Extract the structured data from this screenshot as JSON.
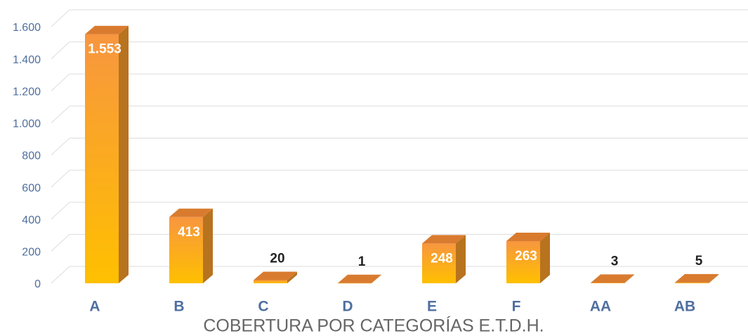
{
  "chart_data": {
    "type": "bar3d",
    "title": "COBERTURA POR CATEGORÍAS E.T.D.H.",
    "categories": [
      "A",
      "B",
      "C",
      "D",
      "E",
      "F",
      "AA",
      "AB"
    ],
    "values": [
      1553,
      413,
      20,
      1,
      248,
      263,
      3,
      5
    ],
    "value_labels": [
      "1.553",
      "413",
      "20",
      "1",
      "248",
      "263",
      "3",
      "5"
    ],
    "color": "#f7963f",
    "ylim": [
      0,
      1600
    ],
    "yticks": [
      0,
      200,
      400,
      600,
      800,
      {
        "value": 1000,
        "label": "1.000"
      },
      {
        "value": 1200,
        "label": "1.200"
      },
      {
        "value": 1400,
        "label": "1.400"
      },
      {
        "value": 1600,
        "label": "1.600"
      }
    ],
    "grid": true
  }
}
